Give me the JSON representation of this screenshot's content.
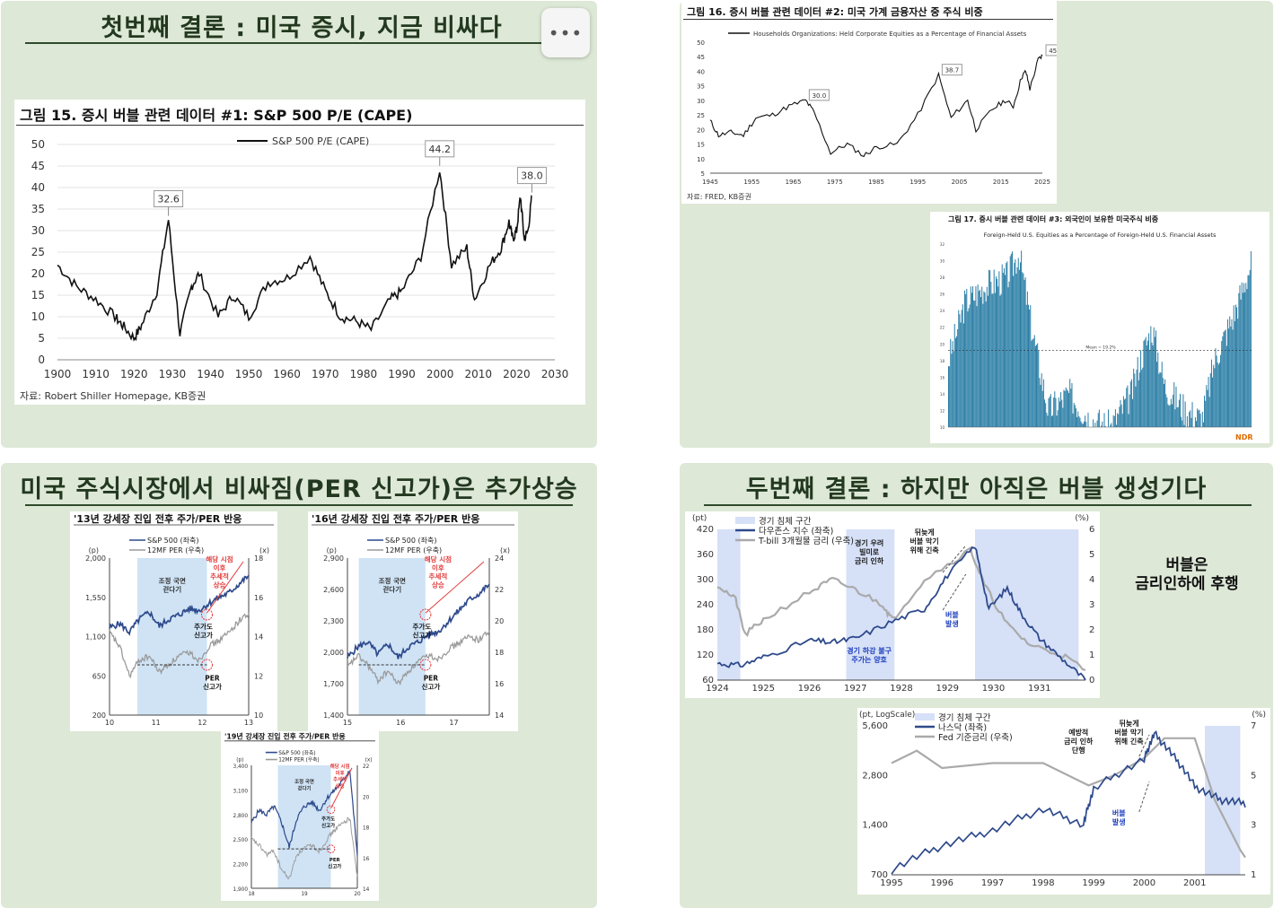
{
  "panels": {
    "p1": {
      "title": "첫번째 결론 : 미국 증시, 지금 비싸다",
      "menu_icon": "ellipsis-icon"
    },
    "p3": {
      "title": "미국 주식시장에서 비싸짐(PER 신고가)은 추가상승"
    },
    "p4": {
      "title": "두번째 결론 : 하지만 아직은 버블 생성기다",
      "note_line1": "버블은",
      "note_line2": "금리인하에 후행"
    }
  },
  "chart_data": [
    {
      "id": "fig15",
      "type": "line",
      "title": "그림 15. 증시 버블 관련 데이터 #1: S&P 500 P/E (CAPE)",
      "source": "자료: Robert Shiller Homepage, KB증권",
      "series": [
        {
          "name": "S&P 500 P/E (CAPE)",
          "x": [
            1900,
            1905,
            1910,
            1915,
            1917,
            1920,
            1922,
            1926,
            1929,
            1932,
            1935,
            1937,
            1942,
            1946,
            1950,
            1955,
            1960,
            1966,
            1970,
            1974,
            1978,
            1982,
            1987,
            1990,
            1995,
            1999.9,
            2003,
            2007,
            2009,
            2013,
            2016,
            2018,
            2019,
            2020,
            2021,
            2022,
            2023,
            2024
          ],
          "values": [
            22,
            17,
            14,
            10,
            8,
            5,
            8,
            16,
            32.6,
            6,
            17,
            20,
            10,
            15,
            10,
            18,
            19,
            24,
            16,
            10,
            9,
            7,
            14,
            16,
            24,
            44.2,
            22,
            26,
            14,
            22,
            26,
            32,
            28,
            30,
            38,
            28,
            30,
            38.0
          ]
        }
      ],
      "xlim": [
        1900,
        2030
      ],
      "ylim": [
        0,
        50
      ],
      "xticks": [
        "1900",
        "1910",
        "1920",
        "1930",
        "1940",
        "1950",
        "1960",
        "1970",
        "1980",
        "1990",
        "2000",
        "2010",
        "2020",
        "2030"
      ],
      "yticks": [
        "0",
        "5",
        "10",
        "15",
        "20",
        "25",
        "30",
        "35",
        "40",
        "45",
        "50"
      ],
      "annotations": [
        "32.6",
        "44.2",
        "38.0"
      ]
    },
    {
      "id": "fig16",
      "type": "line",
      "title": "그림 16. 증시 버블 관련 데이터 #2: 미국 가계 금융자산 중 주식 비중",
      "source": "자료: FRED, KB증권",
      "series": [
        {
          "name": "Households Organizations: Held Corporate Equities as a Percentage of Financial Assets",
          "x": [
            1945,
            1947,
            1950,
            1953,
            1956,
            1960,
            1964,
            1968,
            1970,
            1974,
            1978,
            1982,
            1985,
            1990,
            1995,
            2000,
            2003,
            2007,
            2009,
            2013,
            2016,
            2018,
            2020,
            2021,
            2022,
            2024,
            2025
          ],
          "values": [
            23,
            18,
            19,
            18,
            24,
            25,
            28,
            30.0,
            26,
            12,
            15,
            11,
            14,
            15,
            25,
            38.7,
            24,
            30,
            20,
            27,
            30,
            28,
            38,
            40,
            34,
            44,
            45.4
          ]
        }
      ],
      "xlim": [
        1945,
        2025
      ],
      "ylim": [
        5,
        50
      ],
      "xticks": [
        "1945",
        "1955",
        "1965",
        "1975",
        "1985",
        "1995",
        "2005",
        "2015",
        "2025"
      ],
      "yticks": [
        "5",
        "10",
        "15",
        "20",
        "25",
        "30",
        "35",
        "40",
        "45",
        "50"
      ],
      "annotations": [
        "30.0",
        "38.7",
        "45.4"
      ]
    },
    {
      "id": "fig17",
      "type": "bar",
      "title": "그림 17. 증시 버블 관련 데이터 #3: 외국인이 보유한 미국주식 비중",
      "subtitle": "Foreign-Held U.S. Equities as a Percentage of Foreign-Held U.S. Financial Assets",
      "mean_label": "Mean = 19.2%",
      "brand": "NDR",
      "series": [
        {
          "name": "Foreign-held equities %",
          "x": [
            1951,
            1955,
            1960,
            1965,
            1968,
            1971,
            1975,
            1980,
            1985,
            1990,
            1995,
            1997,
            2000,
            2003,
            2008,
            2012,
            2015,
            2020,
            2024
          ],
          "values": [
            18,
            25,
            27,
            28,
            30.9,
            22,
            12,
            14,
            11,
            10,
            14,
            18,
            21.9,
            15,
            12,
            11,
            18,
            24,
            30.0
          ]
        }
      ],
      "ylim": [
        10,
        32
      ],
      "mean": 19.2
    },
    {
      "id": "rally13",
      "type": "line",
      "title": "'13년 강세장 진입 전후 주가/PER 반응",
      "left_unit": "(p)",
      "right_unit": "(x)",
      "series": [
        {
          "name": "S&P 500 (좌축)",
          "color": "#2e4a8c",
          "values": [
            1200,
            1250,
            1150,
            1300,
            1380,
            1220,
            1300,
            1350,
            1420,
            1400,
            1480,
            1550,
            1600,
            1700,
            1800
          ]
        },
        {
          "name": "12MF PER (우축)",
          "color": "#9a9a9a",
          "values": [
            14.2,
            13.5,
            12.0,
            12.8,
            13.0,
            12.2,
            12.6,
            13.0,
            13.2,
            12.8,
            13.5,
            13.8,
            14.2,
            14.8,
            15.2
          ]
        }
      ],
      "left_ticks": [
        "2,000",
        "1,550",
        "1,100",
        "650",
        "200"
      ],
      "right_ticks": [
        "18",
        "16",
        "14",
        "12",
        "10"
      ],
      "x_ticks": [
        "10",
        "11",
        "12",
        "13"
      ],
      "labels": {
        "correction": "조정 국면\n걷다기",
        "rally": "해당 시점\n이후\n추세적\n상승",
        "price_high": "주가도\n신고가",
        "per_high": "PER\n신고가"
      }
    },
    {
      "id": "rally16",
      "type": "line",
      "title": "'16년 강세장 진입 전후 주가/PER 반응",
      "left_unit": "(p)",
      "right_unit": "(x)",
      "series": [
        {
          "name": "S&P 500 (좌축)",
          "color": "#2e4a8c",
          "values": [
            1950,
            2050,
            2100,
            1980,
            2080,
            1950,
            2050,
            2100,
            2170,
            2200,
            2300,
            2400,
            2500,
            2560,
            2650
          ]
        },
        {
          "name": "12MF PER (우축)",
          "color": "#9a9a9a",
          "values": [
            17.0,
            17.8,
            17.2,
            16.2,
            16.8,
            16.0,
            16.8,
            17.4,
            17.8,
            17.6,
            18.2,
            18.6,
            19.0,
            18.8,
            19.4
          ]
        }
      ],
      "left_ticks": [
        "2,900",
        "2,600",
        "2,300",
        "2,000",
        "1,700",
        "1,400"
      ],
      "right_ticks": [
        "24",
        "22",
        "20",
        "18",
        "16",
        "14"
      ],
      "x_ticks": [
        "15",
        "16",
        "17"
      ],
      "labels": {
        "correction": "조정 국면\n걷다기",
        "rally": "해당 시점\n이후\n추세적\n상승",
        "price_high": "주가도\n신고가",
        "per_high": "PER\n신고가"
      }
    },
    {
      "id": "rally19",
      "type": "line",
      "title": "'19년 강세장 진입 전후 주가/PER 반응",
      "left_unit": "(p)",
      "right_unit": "(x)",
      "series": [
        {
          "name": "S&P 500 (좌축)",
          "color": "#2e4a8c",
          "values": [
            2700,
            2850,
            2800,
            2900,
            2700,
            2400,
            2750,
            2900,
            2950,
            2850,
            3000,
            3100,
            3200,
            3350,
            2300
          ]
        },
        {
          "name": "12MF PER (우축)",
          "color": "#9a9a9a",
          "values": [
            17.2,
            16.8,
            16.2,
            16.4,
            15.2,
            14.6,
            16.2,
            16.6,
            16.8,
            16.4,
            17.2,
            17.8,
            18.2,
            18.6,
            14.8
          ]
        }
      ],
      "left_ticks": [
        "3,400",
        "3,100",
        "2,800",
        "2,500",
        "2,200",
        "1,900"
      ],
      "right_ticks": [
        "22",
        "20",
        "18",
        "16",
        "14"
      ],
      "x_ticks": [
        "18",
        "19",
        "20"
      ],
      "labels": {
        "correction": "조정 국면\n걷다기",
        "rally": "해당 시점\n이후\n추세적\n상승",
        "price_high": "주가도\n신고가",
        "per_high": "PER\n신고가"
      }
    },
    {
      "id": "dow1920s",
      "type": "line",
      "left_unit": "(pt)",
      "right_unit": "(%)",
      "series": [
        {
          "name": "경기 침체 구간",
          "color": "#d6e0f7"
        },
        {
          "name": "다우존스 지수 (좌축)",
          "color": "#2e4a8c",
          "x": [
            1924,
            1924.5,
            1925,
            1926,
            1926.5,
            1927,
            1927.8,
            1928.5,
            1929,
            1929.6,
            1929.9,
            1930.3,
            1930.6,
            1931,
            1931.5,
            1932
          ],
          "values": [
            100,
            95,
            115,
            155,
            150,
            160,
            200,
            230,
            310,
            381,
            230,
            280,
            220,
            160,
            110,
            60
          ]
        },
        {
          "name": "T-bill 3개월물 금리 (우축)",
          "color": "#aaaaaa",
          "x": [
            1924,
            1924.4,
            1924.6,
            1925,
            1926,
            1926.5,
            1927,
            1927.6,
            1927.8,
            1928.5,
            1929.5,
            1929.8,
            1930.3,
            1930.8,
            1931.5,
            1932
          ],
          "values": [
            3.8,
            3.2,
            1.8,
            2.4,
            3.5,
            4.0,
            3.6,
            3.0,
            2.4,
            4.0,
            5.2,
            3.8,
            2.2,
            1.4,
            1.0,
            0.4
          ]
        }
      ],
      "left_ticks": [
        "420",
        "360",
        "300",
        "240",
        "180",
        "120",
        "60"
      ],
      "right_ticks": [
        "6",
        "5",
        "4",
        "3",
        "2",
        "1",
        "0"
      ],
      "x_ticks": [
        "1924",
        "1925",
        "1926",
        "1927",
        "1928",
        "1929",
        "1930",
        "1931"
      ],
      "labels": {
        "cut": "경기 우려\n빌미로\n금리 인하",
        "late": "뒤늦게\n버블 막기\n위해 긴축",
        "slow": "경기 하강 불구\n주가는 양호",
        "bubble": "버블\n발생"
      }
    },
    {
      "id": "nasdaq90s",
      "type": "line",
      "left_unit": "(pt, LogScale)",
      "right_unit": "(%)",
      "series": [
        {
          "name": "경기 침체 구간",
          "color": "#d6e0f7"
        },
        {
          "name": "나스닥 (좌축)",
          "color": "#2e4a8c",
          "x": [
            1995,
            1996,
            1997,
            1998,
            1998.8,
            1999,
            2000,
            2000.2,
            2000.6,
            2001,
            2001.5,
            2002
          ],
          "values": [
            750,
            1050,
            1300,
            1750,
            1400,
            2300,
            3500,
            5000,
            3600,
            2400,
            2000,
            1900
          ]
        },
        {
          "name": "Fed 기준금리 (우축)",
          "color": "#aaaaaa",
          "x": [
            1995,
            1995.5,
            1996,
            1997,
            1998,
            1998.7,
            1998.9,
            1999.4,
            2000,
            2000.4,
            2001,
            2001.4,
            2001.9,
            2002
          ],
          "values": [
            5.5,
            6.0,
            5.3,
            5.5,
            5.5,
            4.8,
            4.6,
            5.0,
            5.7,
            6.5,
            6.5,
            4.0,
            2.0,
            1.7
          ]
        }
      ],
      "left_ticks": [
        "5,600",
        "2,800",
        "1,400",
        "700"
      ],
      "right_ticks": [
        "7",
        "5",
        "3",
        "1"
      ],
      "x_ticks": [
        "1995",
        "1996",
        "1997",
        "1998",
        "1999",
        "2000",
        "2001"
      ],
      "labels": {
        "preemptive": "예방적\n금리 인하\n단행",
        "late": "뒤늦게\n버블 막기\n위해 긴축",
        "bubble": "버블\n발생"
      }
    }
  ]
}
